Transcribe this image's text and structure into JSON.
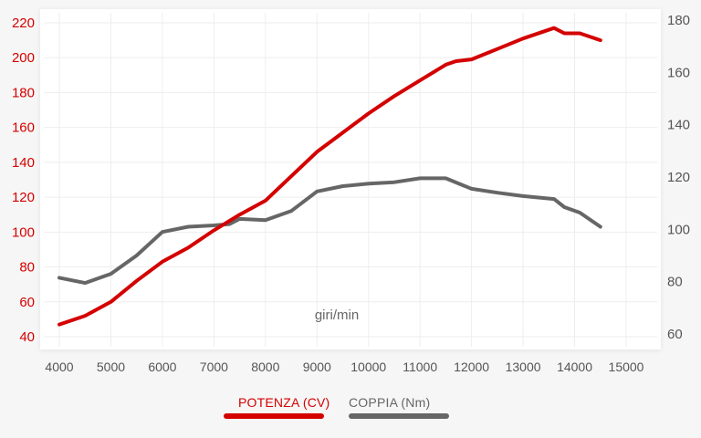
{
  "chart_data": {
    "type": "line",
    "xlabel": "giri/min",
    "x_ticks": [
      4000,
      5000,
      6000,
      7000,
      8000,
      9000,
      10000,
      11000,
      12000,
      13000,
      14000,
      15000
    ],
    "xlim": [
      4000,
      15000
    ],
    "y_left": {
      "ticks": [
        40,
        60,
        80,
        100,
        120,
        140,
        160,
        180,
        200,
        220
      ],
      "lim": [
        40,
        220
      ],
      "color": "#d40000"
    },
    "y_right": {
      "ticks": [
        60,
        80,
        100,
        120,
        140,
        160,
        180
      ],
      "lim": [
        60,
        180
      ],
      "color": "#555555"
    },
    "grid": true,
    "legend_position": "bottom",
    "series": [
      {
        "name": "POTENZA (CV)",
        "axis": "left",
        "color": "#d40000",
        "x": [
          4000,
          4500,
          5000,
          5500,
          6000,
          6500,
          7000,
          7500,
          8000,
          8500,
          9000,
          9500,
          10000,
          10500,
          11000,
          11500,
          11700,
          12000,
          12500,
          13000,
          13600,
          13800,
          14100,
          14500
        ],
        "y": [
          47,
          52,
          60,
          72,
          83,
          91,
          101,
          110,
          118,
          132,
          146,
          157,
          168,
          178,
          187,
          196,
          198,
          199,
          205,
          211,
          217,
          214,
          214,
          210
        ]
      },
      {
        "name": "COPPIA (Nm)",
        "axis": "right",
        "color": "#666666",
        "x": [
          4000,
          4500,
          5000,
          5500,
          6000,
          6500,
          7000,
          7300,
          7500,
          8000,
          8500,
          9000,
          9500,
          10000,
          10500,
          11000,
          11500,
          12000,
          12500,
          13000,
          13600,
          13800,
          14100,
          14500
        ],
        "y": [
          81.5,
          79.5,
          83,
          90,
          99,
          101,
          101.5,
          102,
          104,
          103.5,
          107,
          114.5,
          116.5,
          117.5,
          118,
          119.5,
          119.5,
          115.5,
          114,
          112.7,
          111.6,
          108.5,
          106.4,
          101
        ]
      }
    ]
  }
}
